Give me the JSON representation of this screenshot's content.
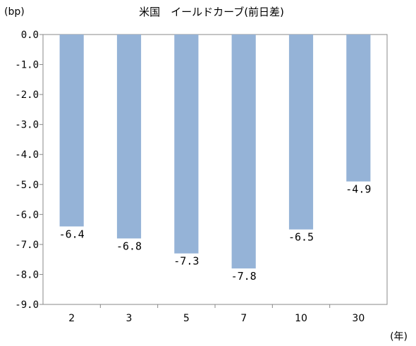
{
  "chart_data": {
    "type": "bar",
    "title": "米国　イールドカーブ(前日差)",
    "y_unit_label": "(bp)",
    "x_unit_label": "(年)",
    "categories": [
      "2",
      "3",
      "5",
      "7",
      "10",
      "30"
    ],
    "values": [
      -6.4,
      -6.8,
      -7.3,
      -7.8,
      -6.5,
      -4.9
    ],
    "data_labels": [
      "-6.4",
      "-6.8",
      "-7.3",
      "-7.8",
      "-6.5",
      "-4.9"
    ],
    "ylim": [
      -9.0,
      0.0
    ],
    "yticks": [
      "0.0",
      "-1.0",
      "-2.0",
      "-3.0",
      "-4.0",
      "-5.0",
      "-6.0",
      "-7.0",
      "-8.0",
      "-9.0"
    ],
    "grid": false,
    "legend": "none",
    "bar_color": "#95b3d7",
    "frame_color": "#888888"
  }
}
